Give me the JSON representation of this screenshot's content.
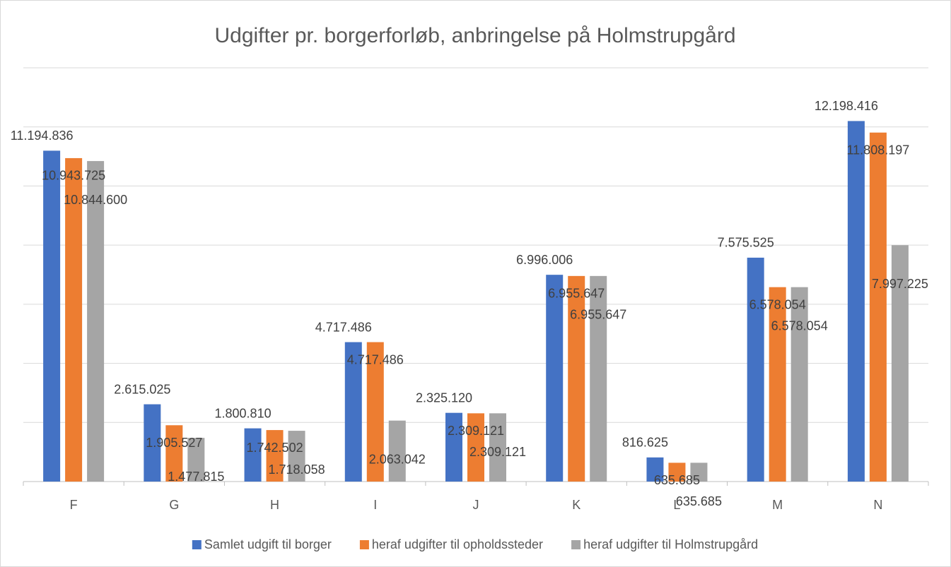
{
  "chart_data": {
    "type": "bar",
    "title": "Udgifter pr. borgerforløb, anbringelse på Holmstrupgård",
    "categories": [
      "F",
      "G",
      "H",
      "I",
      "J",
      "K",
      "L",
      "M",
      "N"
    ],
    "series": [
      {
        "name": "Samlet udgift til borger",
        "color": "#4472c4",
        "values": [
          11194836,
          2615025,
          1800810,
          4717486,
          2325120,
          6996006,
          816625,
          7575525,
          12198416
        ],
        "value_labels": [
          "11.194.836",
          "2.615.025",
          "1.800.810",
          "4.717.486",
          "2.325.120",
          "6.996.006",
          "816.625",
          "7.575.525",
          "12.198.416"
        ]
      },
      {
        "name": "heraf udgifter til opholdssteder",
        "color": "#ed7d31",
        "values": [
          10943725,
          1905527,
          1742502,
          4717486,
          2309121,
          6955647,
          635685,
          6578054,
          11808197
        ],
        "value_labels": [
          "10.943.725",
          "1.905.527",
          "1.742.502",
          "4.717.486",
          "2.309.121",
          "6.955.647",
          "635.685",
          "6.578.054",
          "11.808.197"
        ]
      },
      {
        "name": "heraf udgifter til Holmstrupgård",
        "color": "#a5a5a5",
        "values": [
          10844600,
          1477815,
          1718058,
          2063042,
          2309121,
          6955647,
          635685,
          6578054,
          7997225
        ],
        "value_labels": [
          "10.844.600",
          "1.477.815",
          "1.718.058",
          "2.063.042",
          "2.309.121",
          "6.955.647",
          "635.685",
          "6.578.054",
          "7.997.225"
        ]
      }
    ],
    "ylim": [
      0,
      14000000
    ],
    "yticks": [
      0,
      2000000,
      4000000,
      6000000,
      8000000,
      10000000,
      12000000,
      14000000
    ],
    "grid": true,
    "legend": "bottom"
  }
}
